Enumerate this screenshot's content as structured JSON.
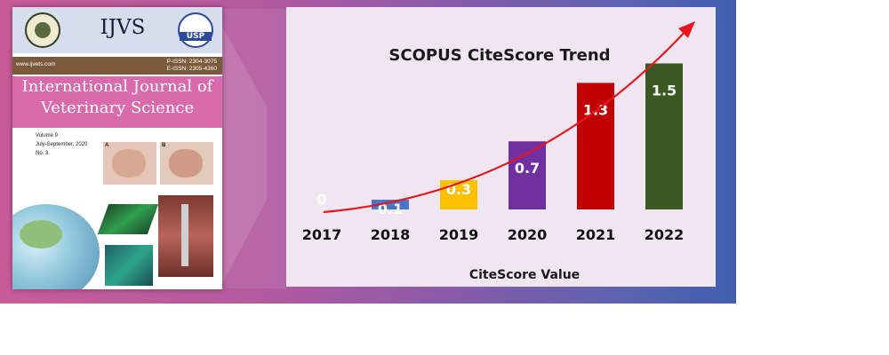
{
  "cover": {
    "abbrev": "IJVS",
    "usp": "USP",
    "url": "www.ijvets.com",
    "pissn": "P-ISSN: 2304-3075",
    "eissn": "E-ISSN: 2305-4360",
    "title_line1": "International Journal of",
    "title_line2": "Veterinary Science",
    "volume": "Volume 9",
    "period": "July-September, 2020",
    "issue": "No. 3",
    "label_a": "A",
    "label_b": "B"
  },
  "colors": {
    "banner_left": "#c85c98",
    "banner_right": "#3f5fae",
    "panel_bg": "#efe6f2",
    "trend_arrow": "#e8141e"
  },
  "chart_data": {
    "type": "bar",
    "title": "SCOPUS CiteScore Trend",
    "xlabel": "CiteScore Value",
    "ylabel": "",
    "categories": [
      "2017",
      "2018",
      "2019",
      "2020",
      "2021",
      "2022"
    ],
    "values": [
      0,
      0.1,
      0.3,
      0.7,
      1.3,
      1.5
    ],
    "value_labels": [
      "0",
      "0.1",
      "0.3",
      "0.7",
      "1.3",
      "1.5"
    ],
    "colors": [
      "#ffffff",
      "#4a74c4",
      "#ffc000",
      "#7030a0",
      "#c00000",
      "#3b5a23"
    ],
    "ylim": [
      0,
      1.55
    ],
    "grid": false,
    "legend": "none",
    "annotations": [
      "trend arrow"
    ]
  }
}
